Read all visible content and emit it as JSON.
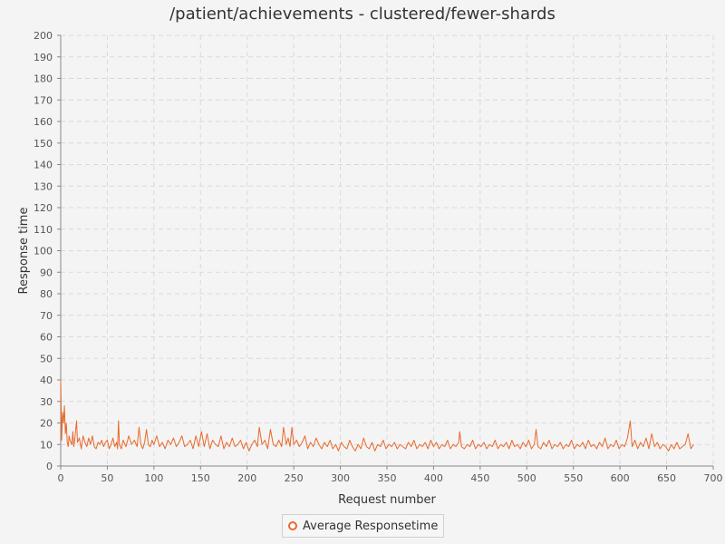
{
  "chart_data": {
    "type": "line",
    "title": "/patient/achievements - clustered/fewer-shards",
    "xlabel": "Request number",
    "ylabel": "Response time",
    "xlim": [
      0,
      700
    ],
    "ylim": [
      0,
      200
    ],
    "x_ticks": [
      "0",
      "50",
      "100",
      "150",
      "200",
      "250",
      "300",
      "350",
      "400",
      "450",
      "500",
      "550",
      "600",
      "650",
      "700"
    ],
    "y_ticks": [
      "0",
      "10",
      "20",
      "30",
      "40",
      "50",
      "60",
      "70",
      "80",
      "90",
      "100",
      "110",
      "120",
      "130",
      "140",
      "150",
      "160",
      "170",
      "180",
      "190",
      "200"
    ],
    "grid": true,
    "legend_position": "bottom",
    "series": [
      {
        "name": "Average Responsetime",
        "color": "#e9692c",
        "points": [
          [
            0,
            40
          ],
          [
            1,
            12
          ],
          [
            2,
            25
          ],
          [
            3,
            20
          ],
          [
            4,
            28
          ],
          [
            5,
            15
          ],
          [
            6,
            20
          ],
          [
            7,
            11
          ],
          [
            8,
            9
          ],
          [
            9,
            14
          ],
          [
            10,
            12
          ],
          [
            12,
            10
          ],
          [
            13,
            16
          ],
          [
            14,
            9
          ],
          [
            15,
            12
          ],
          [
            17,
            21
          ],
          [
            18,
            11
          ],
          [
            20,
            13
          ],
          [
            22,
            8
          ],
          [
            24,
            14
          ],
          [
            26,
            11
          ],
          [
            28,
            9
          ],
          [
            30,
            13
          ],
          [
            32,
            10
          ],
          [
            34,
            14
          ],
          [
            36,
            9
          ],
          [
            38,
            8
          ],
          [
            40,
            11
          ],
          [
            42,
            10
          ],
          [
            44,
            12
          ],
          [
            46,
            9
          ],
          [
            48,
            11
          ],
          [
            50,
            12
          ],
          [
            52,
            8
          ],
          [
            54,
            10
          ],
          [
            56,
            13
          ],
          [
            58,
            9
          ],
          [
            60,
            11
          ],
          [
            61,
            8
          ],
          [
            62,
            21
          ],
          [
            63,
            10
          ],
          [
            65,
            8
          ],
          [
            67,
            12
          ],
          [
            70,
            9
          ],
          [
            73,
            14
          ],
          [
            76,
            10
          ],
          [
            79,
            12
          ],
          [
            82,
            9
          ],
          [
            84,
            18
          ],
          [
            86,
            10
          ],
          [
            88,
            8
          ],
          [
            90,
            11
          ],
          [
            92,
            17
          ],
          [
            94,
            10
          ],
          [
            96,
            9
          ],
          [
            98,
            12
          ],
          [
            100,
            10
          ],
          [
            103,
            14
          ],
          [
            106,
            9
          ],
          [
            109,
            11
          ],
          [
            112,
            8
          ],
          [
            115,
            12
          ],
          [
            118,
            10
          ],
          [
            121,
            13
          ],
          [
            124,
            9
          ],
          [
            127,
            11
          ],
          [
            130,
            14
          ],
          [
            133,
            9
          ],
          [
            136,
            10
          ],
          [
            139,
            12
          ],
          [
            142,
            8
          ],
          [
            145,
            14
          ],
          [
            148,
            9
          ],
          [
            151,
            16
          ],
          [
            154,
            9
          ],
          [
            157,
            15
          ],
          [
            160,
            8
          ],
          [
            163,
            12
          ],
          [
            166,
            10
          ],
          [
            169,
            9
          ],
          [
            172,
            14
          ],
          [
            175,
            8
          ],
          [
            178,
            11
          ],
          [
            181,
            9
          ],
          [
            184,
            13
          ],
          [
            187,
            9
          ],
          [
            190,
            10
          ],
          [
            193,
            12
          ],
          [
            196,
            8
          ],
          [
            199,
            11
          ],
          [
            202,
            7
          ],
          [
            205,
            10
          ],
          [
            208,
            12
          ],
          [
            211,
            9
          ],
          [
            213,
            18
          ],
          [
            216,
            10
          ],
          [
            219,
            12
          ],
          [
            222,
            8
          ],
          [
            225,
            17
          ],
          [
            228,
            10
          ],
          [
            231,
            9
          ],
          [
            234,
            12
          ],
          [
            237,
            9
          ],
          [
            239,
            18
          ],
          [
            242,
            10
          ],
          [
            244,
            13
          ],
          [
            246,
            9
          ],
          [
            248,
            18
          ],
          [
            250,
            10
          ],
          [
            253,
            12
          ],
          [
            256,
            9
          ],
          [
            259,
            11
          ],
          [
            262,
            14
          ],
          [
            265,
            8
          ],
          [
            268,
            11
          ],
          [
            271,
            9
          ],
          [
            274,
            13
          ],
          [
            277,
            10
          ],
          [
            280,
            8
          ],
          [
            283,
            11
          ],
          [
            286,
            9
          ],
          [
            289,
            12
          ],
          [
            292,
            8
          ],
          [
            295,
            10
          ],
          [
            298,
            7
          ],
          [
            301,
            11
          ],
          [
            304,
            9
          ],
          [
            307,
            8
          ],
          [
            310,
            12
          ],
          [
            313,
            9
          ],
          [
            316,
            7
          ],
          [
            319,
            10
          ],
          [
            322,
            8
          ],
          [
            325,
            13
          ],
          [
            328,
            9
          ],
          [
            331,
            8
          ],
          [
            334,
            11
          ],
          [
            337,
            7
          ],
          [
            340,
            10
          ],
          [
            343,
            9
          ],
          [
            346,
            12
          ],
          [
            349,
            8
          ],
          [
            352,
            10
          ],
          [
            355,
            9
          ],
          [
            358,
            11
          ],
          [
            361,
            8
          ],
          [
            364,
            10
          ],
          [
            367,
            9
          ],
          [
            370,
            8
          ],
          [
            373,
            11
          ],
          [
            376,
            9
          ],
          [
            379,
            12
          ],
          [
            382,
            8
          ],
          [
            385,
            10
          ],
          [
            388,
            9
          ],
          [
            391,
            11
          ],
          [
            394,
            8
          ],
          [
            397,
            12
          ],
          [
            400,
            9
          ],
          [
            403,
            11
          ],
          [
            406,
            8
          ],
          [
            409,
            10
          ],
          [
            412,
            9
          ],
          [
            415,
            12
          ],
          [
            418,
            8
          ],
          [
            421,
            10
          ],
          [
            424,
            9
          ],
          [
            427,
            11
          ],
          [
            428,
            16
          ],
          [
            430,
            9
          ],
          [
            433,
            8
          ],
          [
            436,
            10
          ],
          [
            439,
            9
          ],
          [
            442,
            12
          ],
          [
            445,
            8
          ],
          [
            448,
            10
          ],
          [
            451,
            9
          ],
          [
            454,
            11
          ],
          [
            457,
            8
          ],
          [
            460,
            10
          ],
          [
            463,
            9
          ],
          [
            466,
            12
          ],
          [
            469,
            8
          ],
          [
            472,
            10
          ],
          [
            475,
            9
          ],
          [
            478,
            11
          ],
          [
            481,
            8
          ],
          [
            484,
            12
          ],
          [
            487,
            9
          ],
          [
            490,
            10
          ],
          [
            493,
            8
          ],
          [
            496,
            11
          ],
          [
            499,
            9
          ],
          [
            502,
            12
          ],
          [
            505,
            8
          ],
          [
            508,
            10
          ],
          [
            510,
            17
          ],
          [
            512,
            9
          ],
          [
            515,
            8
          ],
          [
            518,
            11
          ],
          [
            521,
            9
          ],
          [
            524,
            12
          ],
          [
            527,
            8
          ],
          [
            530,
            10
          ],
          [
            533,
            9
          ],
          [
            536,
            11
          ],
          [
            539,
            8
          ],
          [
            542,
            10
          ],
          [
            545,
            9
          ],
          [
            548,
            12
          ],
          [
            551,
            8
          ],
          [
            554,
            10
          ],
          [
            557,
            9
          ],
          [
            560,
            11
          ],
          [
            563,
            8
          ],
          [
            566,
            12
          ],
          [
            569,
            9
          ],
          [
            572,
            10
          ],
          [
            575,
            8
          ],
          [
            578,
            11
          ],
          [
            581,
            9
          ],
          [
            584,
            13
          ],
          [
            587,
            8
          ],
          [
            590,
            10
          ],
          [
            593,
            9
          ],
          [
            596,
            12
          ],
          [
            599,
            8
          ],
          [
            602,
            10
          ],
          [
            605,
            9
          ],
          [
            608,
            13
          ],
          [
            611,
            21
          ],
          [
            613,
            9
          ],
          [
            616,
            12
          ],
          [
            619,
            8
          ],
          [
            622,
            11
          ],
          [
            625,
            9
          ],
          [
            628,
            13
          ],
          [
            631,
            8
          ],
          [
            634,
            15
          ],
          [
            637,
            9
          ],
          [
            640,
            11
          ],
          [
            643,
            8
          ],
          [
            646,
            10
          ],
          [
            649,
            9
          ],
          [
            652,
            7
          ],
          [
            655,
            10
          ],
          [
            658,
            8
          ],
          [
            661,
            11
          ],
          [
            664,
            8
          ],
          [
            667,
            9
          ],
          [
            670,
            10
          ],
          [
            673,
            15
          ],
          [
            676,
            8
          ],
          [
            679,
            10
          ]
        ]
      }
    ]
  }
}
